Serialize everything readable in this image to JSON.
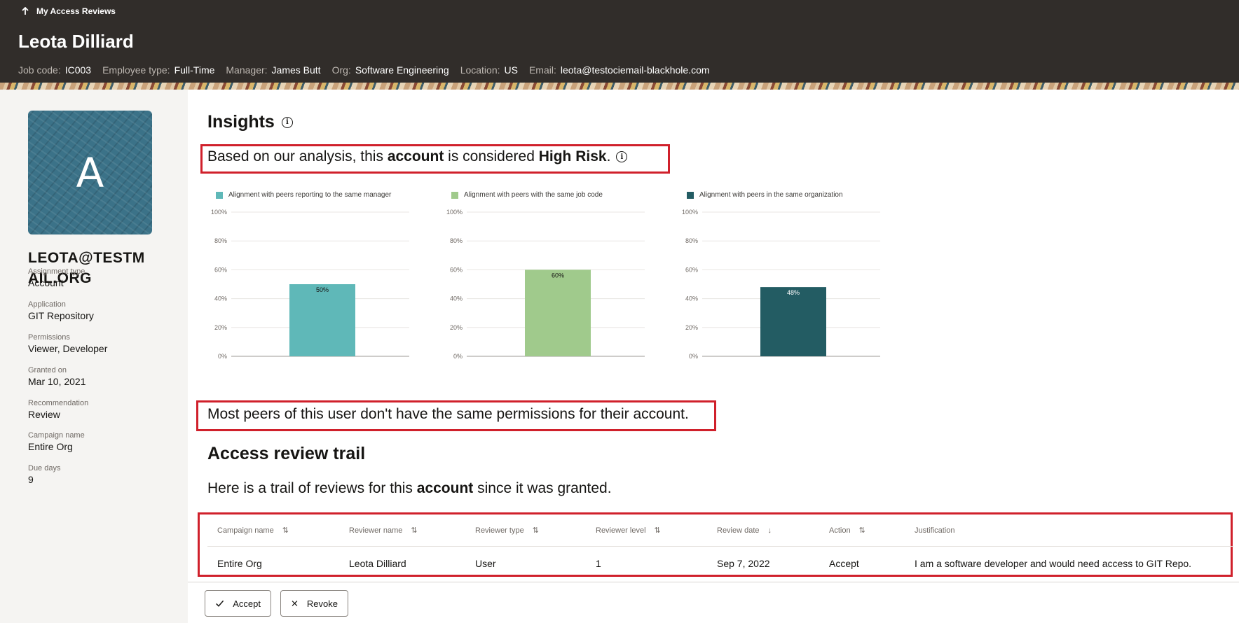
{
  "header": {
    "back_label": "My Access Reviews",
    "user_name": "Leota Dilliard",
    "meta": [
      {
        "label": "Job code:",
        "value": "IC003"
      },
      {
        "label": "Employee type:",
        "value": "Full-Time"
      },
      {
        "label": "Manager:",
        "value": "James Butt"
      },
      {
        "label": "Org:",
        "value": "Software Engineering"
      },
      {
        "label": "Location:",
        "value": "US"
      },
      {
        "label": "Email:",
        "value": "leota@testociemail-blackhole.com"
      }
    ]
  },
  "sidebar": {
    "avatar_letter": "A",
    "account_name": "LEOTA@TESTMAIL.ORG",
    "details": [
      {
        "label": "Assignment type",
        "value": "Account"
      },
      {
        "label": "Application",
        "value": "GIT Repository"
      },
      {
        "label": "Permissions",
        "value": "Viewer, Developer"
      },
      {
        "label": "Granted on",
        "value": "Mar 10, 2021"
      },
      {
        "label": "Recommendation",
        "value": "Review"
      },
      {
        "label": "Campaign name",
        "value": "Entire Org"
      },
      {
        "label": "Due days",
        "value": "9"
      }
    ]
  },
  "insights": {
    "title": "Insights",
    "risk_prefix": "Based on our analysis, this ",
    "risk_subject": "account",
    "risk_middle": " is considered ",
    "risk_level": "High Risk",
    "risk_suffix": ".",
    "peers_message": "Most peers of this user don't have the same permissions for their account."
  },
  "chart_data": [
    {
      "type": "bar",
      "legend": "Alignment with peers reporting to the same manager",
      "values": [
        50
      ],
      "value_labels": [
        "50%"
      ],
      "color": "#5fb8b8",
      "ylim": [
        0,
        100
      ],
      "yticks": [
        "0%",
        "20%",
        "40%",
        "60%",
        "80%",
        "100%"
      ]
    },
    {
      "type": "bar",
      "legend": "Alignment with peers with the same job code",
      "values": [
        60
      ],
      "value_labels": [
        "60%"
      ],
      "color": "#a0ca8c",
      "ylim": [
        0,
        100
      ],
      "yticks": [
        "0%",
        "20%",
        "40%",
        "60%",
        "80%",
        "100%"
      ]
    },
    {
      "type": "bar",
      "legend": "Alignment with peers in the same organization",
      "values": [
        48
      ],
      "value_labels": [
        "48%"
      ],
      "color": "#235c63",
      "ylim": [
        0,
        100
      ],
      "yticks": [
        "0%",
        "20%",
        "40%",
        "60%",
        "80%",
        "100%"
      ]
    }
  ],
  "trail": {
    "title": "Access review trail",
    "desc_prefix": "Here is a trail of reviews for this ",
    "desc_subject": "account",
    "desc_suffix": " since it was granted.",
    "columns": [
      {
        "label": "Campaign name",
        "sort": "⇅"
      },
      {
        "label": "Reviewer name",
        "sort": "⇅"
      },
      {
        "label": "Reviewer type",
        "sort": "⇅"
      },
      {
        "label": "Reviewer level",
        "sort": "⇅"
      },
      {
        "label": "Review date",
        "sort": "↓"
      },
      {
        "label": "Action",
        "sort": "⇅"
      },
      {
        "label": "Justification",
        "sort": ""
      }
    ],
    "rows": [
      [
        "Entire Org",
        "Leota Dilliard",
        "User",
        "1",
        "Sep 7, 2022",
        "Accept",
        "I am a software developer and would need access to GIT Repo."
      ]
    ]
  },
  "actions": {
    "accept_label": "Accept",
    "revoke_label": "Revoke"
  }
}
